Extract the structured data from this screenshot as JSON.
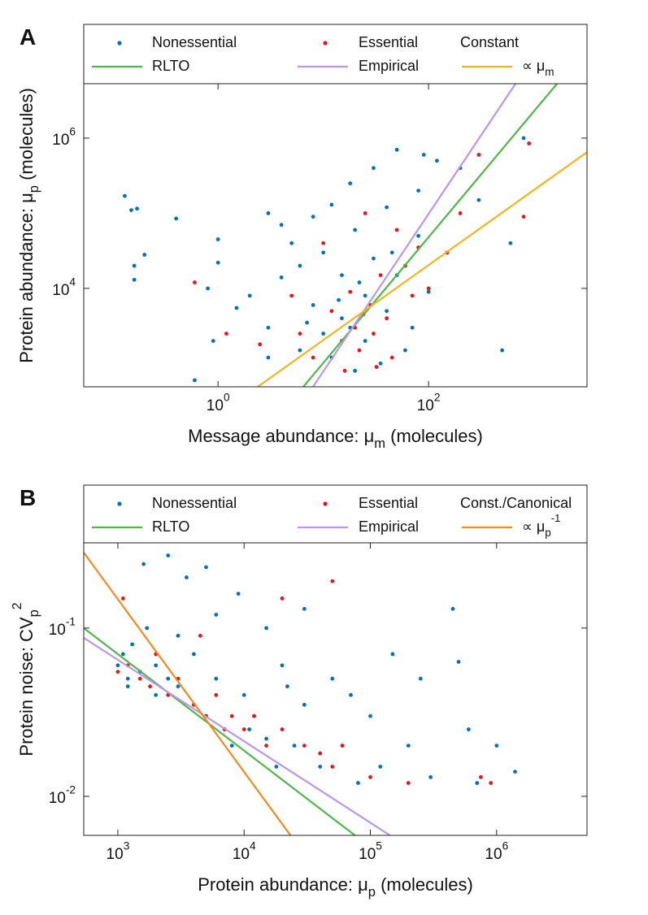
{
  "chart_data": [
    {
      "type": "scatter",
      "panel_label": "A",
      "xscale": "log",
      "yscale": "log",
      "x_label": "Message abundance: μ_m (molecules)",
      "y_label": "Protein abundance: μ_p (molecules)",
      "xlim": [
        0.053,
        3200
      ],
      "ylim": [
        490,
        5300000
      ],
      "xticks": [
        {
          "value": 1,
          "label": "10^0"
        },
        {
          "value": 100,
          "label": "10^2"
        }
      ],
      "yticks": [
        {
          "value": 10000,
          "label": "10^4"
        },
        {
          "value": 1000000,
          "label": "10^6"
        }
      ],
      "legend_extra": "Constant",
      "series": [
        {
          "name": "Nonessential",
          "color": "#0072bd",
          "mode": "markers",
          "x": [
            0.13,
            0.15,
            0.17,
            0.16,
            0.16,
            0.2,
            0.4,
            0.6,
            1,
            1,
            0.8,
            1.5,
            0.9,
            2,
            3,
            3,
            4,
            4,
            5,
            6,
            6,
            8,
            8,
            10,
            10,
            12,
            12,
            15,
            15,
            18,
            20,
            20,
            25,
            25,
            30,
            30,
            40,
            40,
            50,
            50,
            60,
            80,
            80,
            100,
            120,
            150,
            200,
            300,
            500,
            600,
            800,
            3,
            7,
            14,
            22,
            35,
            45,
            70,
            90,
            18
          ],
          "values": [
            170000,
            110000,
            115000,
            13000,
            20000,
            28000,
            85000,
            600,
            45000,
            22000,
            10000,
            5500,
            2000,
            8000,
            100000,
            3000,
            70000,
            14000,
            40000,
            1500,
            20000,
            90000,
            6000,
            30000,
            2500,
            130000,
            1200,
            15000,
            4000,
            250000,
            60000,
            800,
            8000,
            2000,
            400000,
            25000,
            120000,
            5000,
            700000,
            15000,
            1500,
            50000,
            200000,
            9000,
            500000,
            30000,
            400000,
            150000,
            1500,
            40000,
            1000000,
            1200,
            3500,
            7000,
            12000,
            1000,
            30000,
            3000,
            600000,
            3000
          ]
        },
        {
          "name": "Essential",
          "color": "#e8161b",
          "mode": "markers",
          "x": [
            0.6,
            1.2,
            2.5,
            5,
            6,
            8,
            10,
            12,
            15,
            18,
            20,
            22,
            25,
            28,
            30,
            35,
            40,
            45,
            50,
            60,
            70,
            80,
            100,
            150,
            200,
            300,
            800,
            900,
            16,
            24,
            32
          ],
          "values": [
            12000,
            2500,
            1800,
            8000,
            2500,
            1200,
            40000,
            5000,
            2000,
            9000,
            3000,
            1500,
            100000,
            6000,
            2500,
            15000,
            4000,
            1200,
            60000,
            20000,
            8000,
            35000,
            10000,
            30000,
            100000,
            600000,
            90000,
            850000,
            800,
            4500,
            900
          ]
        },
        {
          "name": "RLTO",
          "color": "#4db848",
          "mode": "line",
          "x": [
            6.47,
            1660
          ],
          "values": [
            492,
            5300000
          ]
        },
        {
          "name": "Empirical",
          "color": "#bb95ef",
          "mode": "line",
          "x": [
            8.0,
            670
          ],
          "values": [
            492,
            5300000
          ]
        },
        {
          "name": "∝ μ_m",
          "color": "#f5b41a",
          "mode": "line",
          "x": [
            2.39,
            3200
          ],
          "values": [
            492,
            650000
          ]
        }
      ]
    },
    {
      "type": "scatter",
      "panel_label": "B",
      "xscale": "log",
      "yscale": "log",
      "x_label": "Protein abundance: μ_p (molecules)",
      "y_label": "Protein noise: CV_p^2",
      "xlim": [
        537,
        5200000
      ],
      "ylim": [
        0.00586,
        0.321
      ],
      "xticks": [
        {
          "value": 1000,
          "label": "10^3"
        },
        {
          "value": 10000,
          "label": "10^4"
        },
        {
          "value": 100000,
          "label": "10^5"
        },
        {
          "value": 1000000,
          "label": "10^6"
        }
      ],
      "yticks": [
        {
          "value": 0.01,
          "label": "10^-2"
        },
        {
          "value": 0.1,
          "label": "10^-1"
        }
      ],
      "legend_extra": "Const./Canonical",
      "series": [
        {
          "name": "Nonessential",
          "color": "#0072bd",
          "mode": "markers",
          "x": [
            1000,
            1100,
            1200,
            1300,
            1500,
            1600,
            1700,
            2000,
            2500,
            2000,
            3000,
            3500,
            4000,
            4000,
            5000,
            5000,
            6000,
            7000,
            8000,
            9000,
            10000,
            12000,
            15000,
            15000,
            18000,
            20000,
            25000,
            30000,
            30000,
            40000,
            50000,
            60000,
            70000,
            80000,
            100000,
            120000,
            150000,
            200000,
            250000,
            300000,
            450000,
            500000,
            600000,
            700000,
            1000000,
            1400000,
            1200,
            2500,
            3000,
            6000,
            11000,
            22000
          ],
          "values": [
            0.06,
            0.07,
            0.05,
            0.08,
            0.055,
            0.24,
            0.1,
            0.06,
            0.27,
            0.04,
            0.045,
            0.2,
            0.035,
            0.07,
            0.03,
            0.23,
            0.05,
            0.025,
            0.02,
            0.16,
            0.04,
            0.03,
            0.1,
            0.022,
            0.015,
            0.06,
            0.02,
            0.13,
            0.035,
            0.015,
            0.05,
            0.02,
            0.04,
            0.012,
            0.03,
            0.015,
            0.07,
            0.02,
            0.05,
            0.013,
            0.13,
            0.063,
            0.025,
            0.012,
            0.02,
            0.014,
            0.045,
            0.05,
            0.09,
            0.12,
            0.025,
            0.045
          ]
        },
        {
          "name": "Essential",
          "color": "#e8161b",
          "mode": "markers",
          "x": [
            1000,
            1100,
            1200,
            1500,
            1800,
            2000,
            2500,
            3000,
            4000,
            4500,
            5000,
            6000,
            7000,
            8000,
            10000,
            12000,
            15000,
            20000,
            20000,
            30000,
            40000,
            50000,
            50000,
            60000,
            100000,
            200000,
            750000,
            900000
          ],
          "values": [
            0.055,
            0.15,
            0.06,
            0.05,
            0.045,
            0.07,
            0.04,
            0.05,
            0.035,
            0.09,
            0.03,
            0.04,
            0.025,
            0.03,
            0.025,
            0.03,
            0.02,
            0.15,
            0.025,
            0.02,
            0.018,
            0.19,
            0.015,
            0.02,
            0.013,
            0.012,
            0.013,
            0.012
          ]
        },
        {
          "name": "RLTO",
          "color": "#4db848",
          "mode": "line",
          "x": [
            537,
            75500
          ],
          "values": [
            0.1,
            0.00586
          ]
        },
        {
          "name": "Empirical",
          "color": "#bb95ef",
          "mode": "line",
          "x": [
            537,
            143000
          ],
          "values": [
            0.0875,
            0.00586
          ]
        },
        {
          "name": "∝ μ_p^-1",
          "color": "#f48a1c",
          "mode": "line",
          "x": [
            537,
            23300
          ],
          "values": [
            0.281,
            0.00586
          ]
        }
      ]
    }
  ]
}
